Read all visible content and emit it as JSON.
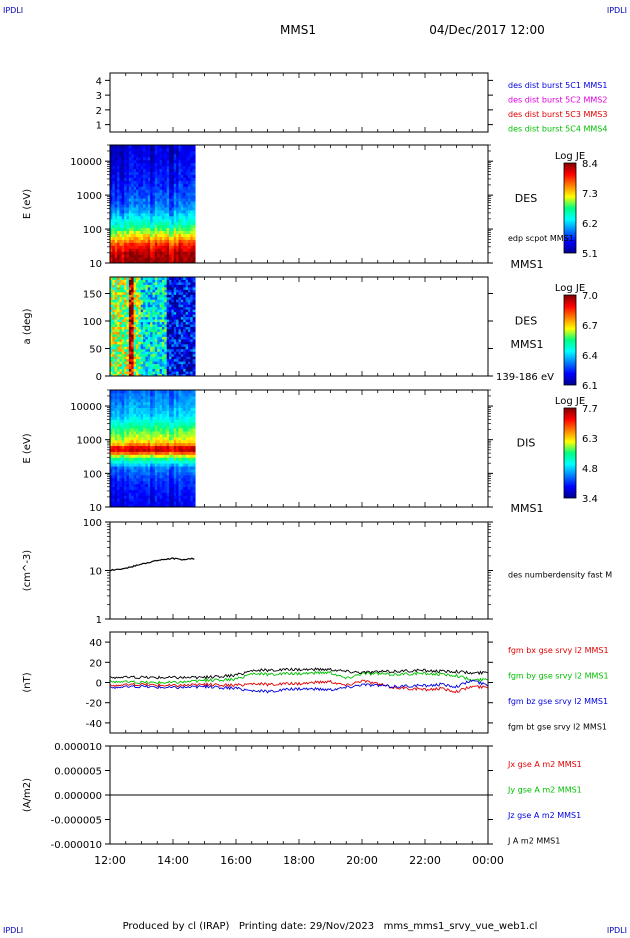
{
  "header": {
    "corner_left": "IPDLI",
    "corner_right": "IPDLI",
    "spacecraft": "MMS1",
    "datetime": "04/Dec/2017 12:00"
  },
  "footer": {
    "text": "Produced by cl (IRAP)   Printing date: 29/Nov/2023   mms_mms1_srvy_vue_web1.cl",
    "corner_left": "IPDLI",
    "corner_right": "IPDLI"
  },
  "time_axis": {
    "start_hour": 12,
    "end_hour": 24,
    "tick_labels": [
      "12:00",
      "14:00",
      "16:00",
      "18:00",
      "20:00",
      "22:00",
      "00:00"
    ]
  },
  "colors": {
    "black": "#000000",
    "red": "#e00000",
    "green": "#00c000",
    "blue": "#0000e0",
    "magenta": "#e000e0",
    "link_blue": "#0000c0"
  },
  "chart_data": [
    {
      "type": "line",
      "id": "burst",
      "ylim": [
        0.5,
        4.5
      ],
      "yticks": [
        1,
        2,
        3,
        4
      ],
      "ytick_labels": [
        "1",
        "2",
        "3",
        "4"
      ],
      "ylabel": "",
      "legend": [
        {
          "text": "des dist burst 5C1 MMS1",
          "color": "#0000e0"
        },
        {
          "text": "des dist burst 5C2 MMS2",
          "color": "#e000e0"
        },
        {
          "text": "des dist burst 5C3 MMS3",
          "color": "#e00000"
        },
        {
          "text": "des dist burst 5C4 MMS4",
          "color": "#00c000"
        }
      ],
      "series": []
    },
    {
      "type": "heatmap",
      "id": "des_energy",
      "ylabel": "E (eV)",
      "yscale": "log",
      "ylim": [
        10,
        30000
      ],
      "ytick_labels": [
        "10",
        "100",
        "1000",
        "10000"
      ],
      "yticks": [
        10,
        100,
        1000,
        10000
      ],
      "time_range": [
        12.0,
        14.7
      ],
      "instrument": "DES",
      "extra_label": "edp scpot MMS1",
      "sc_label": "MMS1",
      "colorbar": {
        "title": "Log JE",
        "labels": [
          "8.4",
          "7.3",
          "6.2",
          "5.1"
        ],
        "min": 5.1,
        "max": 8.4
      },
      "profile": [
        [
          10,
          8.3
        ],
        [
          20,
          8.2
        ],
        [
          35,
          7.8
        ],
        [
          50,
          7.4
        ],
        [
          80,
          7.0
        ],
        [
          120,
          6.6
        ],
        [
          200,
          6.3
        ],
        [
          400,
          5.9
        ],
        [
          1000,
          5.7
        ],
        [
          3000,
          5.5
        ],
        [
          30000,
          5.3
        ]
      ]
    },
    {
      "type": "heatmap",
      "id": "des_pitch",
      "ylabel": "a (deg)",
      "ylim": [
        0,
        180
      ],
      "yticks": [
        0,
        50,
        100,
        150
      ],
      "ytick_labels": [
        "0",
        "50",
        "100",
        "150"
      ],
      "time_range": [
        12.0,
        14.7
      ],
      "instrument": "DES",
      "sc_label": "MMS1",
      "energy_label": "139-186 eV",
      "colorbar": {
        "title": "Log JE",
        "labels": [
          "7.0",
          "6.7",
          "6.4",
          "6.1"
        ],
        "min": 6.1,
        "max": 7.0
      }
    },
    {
      "type": "heatmap",
      "id": "dis_energy",
      "ylabel": "E (eV)",
      "yscale": "log",
      "ylim": [
        10,
        30000
      ],
      "ytick_labels": [
        "10",
        "100",
        "1000",
        "10000"
      ],
      "yticks": [
        10,
        100,
        1000,
        10000
      ],
      "time_range": [
        12.0,
        14.7
      ],
      "instrument": "DIS",
      "sc_label": "MMS1",
      "colorbar": {
        "title": "Log JE",
        "labels": [
          "7.7",
          "6.3",
          "4.8",
          "3.4"
        ],
        "min": 3.4,
        "max": 7.7
      },
      "profile": [
        [
          10,
          3.8
        ],
        [
          50,
          4.0
        ],
        [
          150,
          4.4
        ],
        [
          300,
          5.6
        ],
        [
          450,
          7.0
        ],
        [
          550,
          7.6
        ],
        [
          700,
          6.6
        ],
        [
          1000,
          6.0
        ],
        [
          2000,
          5.6
        ],
        [
          5000,
          4.8
        ],
        [
          30000,
          4.3
        ]
      ]
    },
    {
      "type": "line",
      "id": "density",
      "ylabel": "(cm^-3)",
      "yscale": "log",
      "ylim": [
        1,
        100
      ],
      "yticks": [
        1,
        10,
        100
      ],
      "ytick_labels": [
        "1",
        "10",
        "100"
      ],
      "legend": [
        {
          "text": "des numberdensity fast M",
          "color": "#000000"
        }
      ],
      "series": [
        {
          "name": "des numberdensity fast M",
          "color": "#000000",
          "x": [
            12.0,
            12.25,
            12.5,
            12.75,
            13.0,
            13.25,
            13.5,
            13.75,
            14.0,
            14.25,
            14.5,
            14.7
          ],
          "y": [
            10.0,
            10.6,
            11.2,
            12.2,
            13.5,
            14.8,
            16.0,
            17.0,
            17.8,
            16.8,
            17.2,
            17.8
          ]
        }
      ]
    },
    {
      "type": "line",
      "id": "fgm",
      "ylabel": "(nT)",
      "ylim": [
        -50,
        50
      ],
      "yticks": [
        -40,
        -20,
        0,
        20,
        40
      ],
      "ytick_labels": [
        "-40",
        "-20",
        "0",
        "20",
        "40"
      ],
      "legend": [
        {
          "text": "fgm bx gse srvy l2 MMS1",
          "color": "#e00000"
        },
        {
          "text": "fgm by gse srvy l2 MMS1",
          "color": "#00c000"
        },
        {
          "text": "fgm bz gse srvy l2 MMS1",
          "color": "#0000e0"
        },
        {
          "text": "fgm bt gse srvy l2 MMS1",
          "color": "#000000"
        }
      ],
      "series": [
        {
          "name": "fgm bx gse srvy l2 MMS1",
          "color": "#e00000",
          "x": [
            12,
            13,
            14,
            15,
            16,
            16.5,
            17,
            18,
            19,
            19.5,
            20,
            21,
            22,
            22.5,
            23,
            23.5,
            24
          ],
          "y": [
            -3,
            -2,
            -3,
            -2,
            -3,
            -1,
            -2,
            -1,
            1,
            -3,
            2,
            -5,
            -7,
            -6,
            -9,
            -4,
            -5
          ]
        },
        {
          "name": "fgm by gse srvy l2 MMS1",
          "color": "#00c000",
          "x": [
            12,
            13,
            14,
            15,
            16,
            16.5,
            17,
            18,
            19,
            19.5,
            20,
            21,
            22,
            22.5,
            23,
            23.5,
            24
          ],
          "y": [
            1,
            0,
            0,
            2,
            3,
            9,
            8,
            9,
            10,
            4,
            9,
            8,
            9,
            8,
            7,
            2,
            3
          ]
        },
        {
          "name": "fgm bz gse srvy l2 MMS1",
          "color": "#0000e0",
          "x": [
            12,
            13,
            14,
            15,
            16,
            16.5,
            17,
            18,
            19,
            19.5,
            20,
            21,
            22,
            22.5,
            23,
            23.5,
            24
          ],
          "y": [
            -5,
            -4,
            -5,
            -4,
            -6,
            -8,
            -9,
            -6,
            -7,
            -5,
            -2,
            -4,
            -3,
            -2,
            -4,
            2,
            -3
          ]
        },
        {
          "name": "fgm bt gse srvy l2 MMS1",
          "color": "#000000",
          "x": [
            12,
            13,
            14,
            15,
            16,
            16.5,
            17,
            18,
            19,
            19.5,
            20,
            21,
            22,
            22.5,
            23,
            23.5,
            24
          ],
          "y": [
            5,
            5,
            5,
            5,
            7,
            12,
            12,
            13,
            13,
            11,
            10,
            11,
            12,
            11,
            11,
            9,
            10
          ]
        }
      ]
    },
    {
      "type": "line",
      "id": "current",
      "ylabel": "(A/m2)",
      "ylim": [
        -1e-05,
        1e-05
      ],
      "yticks": [
        -1e-05,
        -5e-06,
        0,
        5e-06,
        1e-05
      ],
      "ytick_labels": [
        "-0.000010",
        "-0.000005",
        "0.000000",
        "0.000005",
        "0.000010"
      ],
      "legend": [
        {
          "text": "Jx gse A m2 MMS1",
          "color": "#e00000"
        },
        {
          "text": "Jy gse A m2 MMS1",
          "color": "#00c000"
        },
        {
          "text": "Jz gse A m2 MMS1",
          "color": "#0000e0"
        },
        {
          "text": "J A m2 MMS1",
          "color": "#000000"
        }
      ],
      "series": [
        {
          "name": "J A m2 MMS1",
          "color": "#000000",
          "x": [
            12,
            14,
            16,
            18,
            20,
            22,
            24
          ],
          "y": [
            0,
            0,
            0,
            0,
            0,
            0,
            0
          ]
        }
      ]
    }
  ]
}
